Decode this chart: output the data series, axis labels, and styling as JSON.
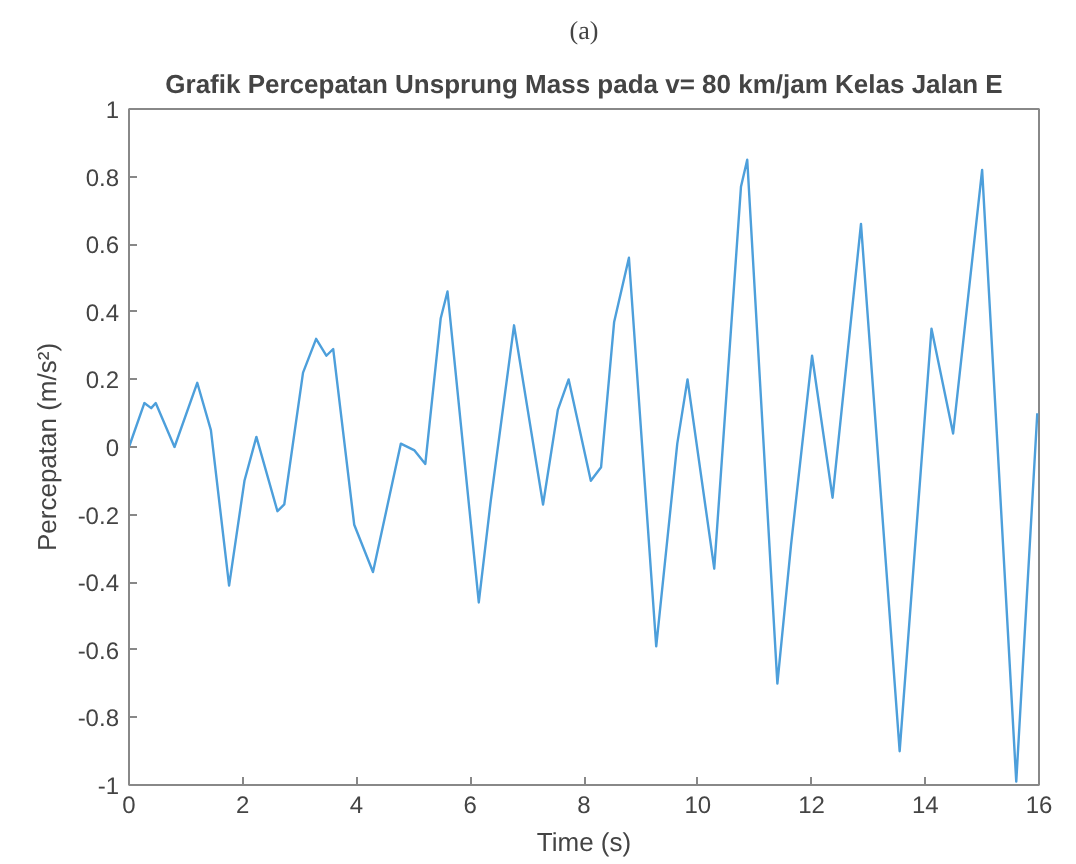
{
  "chart_data": {
    "type": "line",
    "title": "Grafik Percepatan Unsprung Mass pada v= 80 km/jam Kelas Jalan E",
    "xlabel": "Time (s)",
    "ylabel": "Percepatan (m/s²)",
    "annotations": [
      "(a)"
    ],
    "xlim": [
      0,
      16
    ],
    "ylim": [
      -1,
      1
    ],
    "xticks": [
      0,
      2,
      4,
      6,
      8,
      10,
      12,
      14,
      16
    ],
    "yticks": [
      -1,
      -0.8,
      -0.6,
      -0.4,
      -0.2,
      0,
      0.2,
      0.4,
      0.6,
      0.8,
      1
    ],
    "grid": false,
    "series": [
      {
        "color": "#4d9fdb",
        "x": [
          0,
          0.27,
          0.39,
          0.47,
          0.8,
          1.2,
          1.44,
          1.76,
          2.03,
          2.24,
          2.61,
          2.73,
          3.06,
          3.29,
          3.47,
          3.59,
          3.96,
          4.29,
          4.78,
          5.02,
          5.21,
          5.48,
          5.6,
          6.15,
          6.36,
          6.77,
          7.28,
          7.54,
          7.73,
          8.12,
          8.3,
          8.53,
          8.79,
          9.27,
          9.64,
          9.82,
          10.29,
          10.76,
          10.87,
          11.4,
          11.64,
          12.01,
          12.37,
          12.87,
          13.55,
          14.11,
          14.49,
          15.0,
          15.6,
          15.97
        ],
        "values": [
          0,
          0.13,
          0.115,
          0.13,
          0,
          0.19,
          0.05,
          -0.41,
          -0.1,
          0.03,
          -0.19,
          -0.17,
          0.22,
          0.32,
          0.27,
          0.29,
          -0.23,
          -0.37,
          0.01,
          -0.01,
          -0.05,
          0.38,
          0.46,
          -0.46,
          -0.16,
          0.36,
          -0.17,
          0.11,
          0.2,
          -0.1,
          -0.06,
          0.37,
          0.56,
          -0.59,
          0.01,
          0.2,
          -0.36,
          0.77,
          0.85,
          -0.7,
          -0.29,
          0.27,
          -0.15,
          0.66,
          -0.9,
          0.35,
          0.04,
          0.82,
          -0.99,
          0.1
        ]
      }
    ]
  }
}
